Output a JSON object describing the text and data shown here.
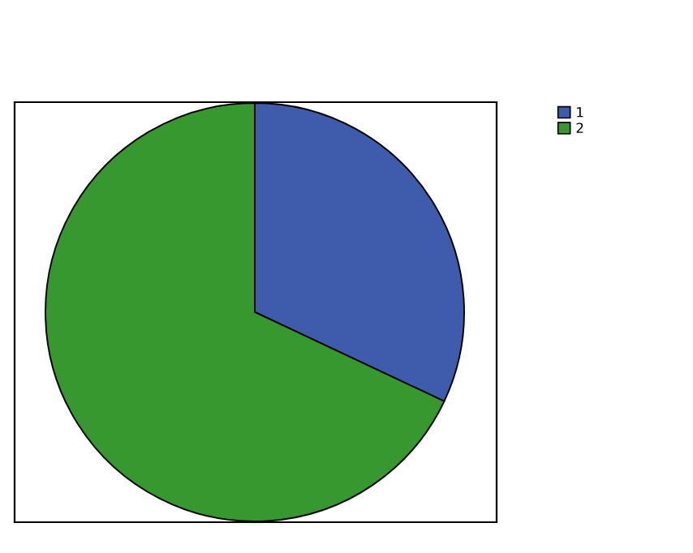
{
  "chart_data": {
    "type": "pie",
    "categories": [
      "1",
      "2"
    ],
    "values": [
      32,
      68
    ],
    "colors": [
      "#3f5bab",
      "#36982f"
    ],
    "legend": "top right"
  }
}
